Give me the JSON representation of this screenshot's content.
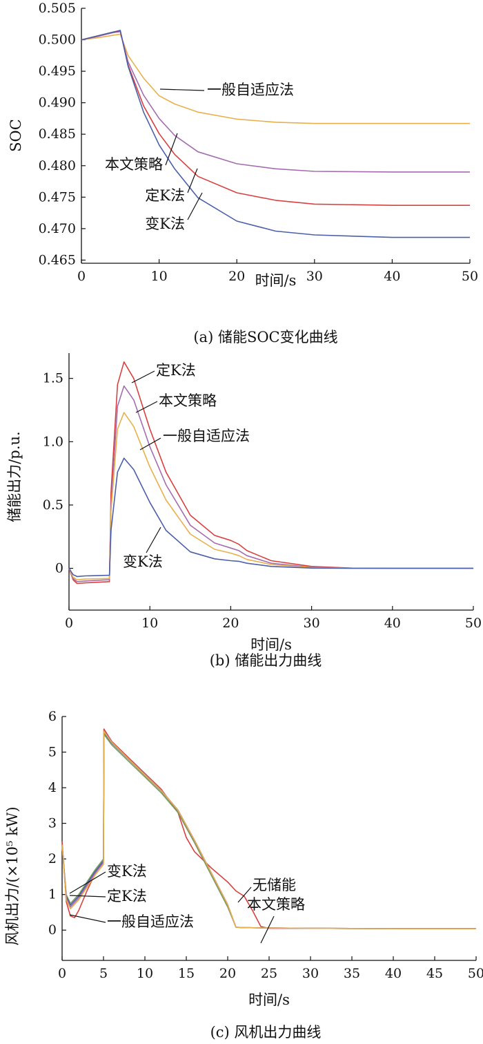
{
  "chart_data": [
    {
      "type": "line",
      "caption": "(a) 储能SOC变化曲线",
      "xlabel": "时间/s",
      "ylabel": "SOC",
      "xlim": [
        0,
        50
      ],
      "ylim": [
        0.4645,
        0.505
      ],
      "xticks": [
        0,
        10,
        20,
        30,
        40,
        50
      ],
      "yticks": [
        0.465,
        0.47,
        0.475,
        0.48,
        0.485,
        0.49,
        0.495,
        0.5,
        0.505
      ],
      "tick_decimals": 3,
      "grid": false,
      "series": [
        {
          "name": "一般自适应法",
          "color": "#e8b04a",
          "x": [
            0,
            2,
            4,
            5,
            6,
            8,
            10,
            12,
            15,
            20,
            25,
            30,
            40,
            50
          ],
          "y": [
            0.5,
            0.5003,
            0.5007,
            0.5009,
            0.4975,
            0.4939,
            0.4911,
            0.4898,
            0.4885,
            0.4874,
            0.4869,
            0.4867,
            0.4867,
            0.4867
          ]
        },
        {
          "name": "本文策略",
          "color": "#a46cb0",
          "x": [
            0,
            2,
            4,
            5,
            6,
            8,
            10,
            12,
            15,
            20,
            25,
            30,
            40,
            50
          ],
          "y": [
            0.5,
            0.5005,
            0.5011,
            0.5013,
            0.4965,
            0.4912,
            0.4875,
            0.4848,
            0.4822,
            0.4803,
            0.4795,
            0.4791,
            0.479,
            0.479
          ]
        },
        {
          "name": "定K法",
          "color": "#d94040",
          "x": [
            0,
            2,
            4,
            5,
            6,
            8,
            10,
            12,
            15,
            20,
            25,
            30,
            40,
            50
          ],
          "y": [
            0.5,
            0.5006,
            0.5012,
            0.5014,
            0.496,
            0.4895,
            0.4851,
            0.4818,
            0.4783,
            0.4757,
            0.4745,
            0.4739,
            0.4737,
            0.4737
          ]
        },
        {
          "name": "变K法",
          "color": "#4a5eaa",
          "x": [
            0,
            2,
            4,
            5,
            6,
            8,
            10,
            12,
            15,
            20,
            25,
            30,
            40,
            50
          ],
          "y": [
            0.5,
            0.5006,
            0.5012,
            0.5015,
            0.4958,
            0.4885,
            0.4833,
            0.4795,
            0.4749,
            0.4712,
            0.4696,
            0.469,
            0.4686,
            0.4686
          ]
        }
      ],
      "annotations": [
        {
          "text": "一般自适应法",
          "x": 10,
          "y": 0.4915
        },
        {
          "text": "本文策略",
          "x": 12,
          "y": 0.4852
        },
        {
          "text": "定K法",
          "x": 14.5,
          "y": 0.4793
        },
        {
          "text": "变K法",
          "x": 15.5,
          "y": 0.4742
        }
      ]
    },
    {
      "type": "line",
      "caption": "(b) 储能出力曲线",
      "xlabel": "时间/s",
      "ylabel": "储能出力/p.u.",
      "xlim": [
        0,
        50
      ],
      "ylim": [
        -0.33,
        1.7
      ],
      "xticks": [
        0,
        10,
        20,
        30,
        40,
        50
      ],
      "yticks": [
        0,
        0.5,
        1.0,
        1.5
      ],
      "tick_labels": [
        "0",
        "0.5",
        "1.0",
        "1.5"
      ],
      "grid": false,
      "series": [
        {
          "name": "定K法",
          "color": "#d94040",
          "x": [
            0,
            0.5,
            1,
            2,
            5,
            5.2,
            6,
            6.8,
            8,
            10,
            12,
            15,
            18,
            20,
            21,
            22,
            25,
            30,
            35,
            40,
            50
          ],
          "y": [
            0,
            -0.09,
            -0.12,
            -0.115,
            -0.105,
            0.6,
            1.45,
            1.63,
            1.5,
            1.1,
            0.76,
            0.42,
            0.26,
            0.22,
            0.19,
            0.14,
            0.06,
            0.015,
            0.002,
            0,
            0
          ]
        },
        {
          "name": "本文策略",
          "color": "#a46cb0",
          "x": [
            0,
            0.5,
            1,
            2,
            5,
            5.2,
            6,
            6.8,
            8,
            10,
            12,
            15,
            18,
            20,
            21,
            22,
            25,
            30,
            35,
            40,
            50
          ],
          "y": [
            0,
            -0.08,
            -0.105,
            -0.1,
            -0.09,
            0.5,
            1.28,
            1.44,
            1.33,
            0.96,
            0.66,
            0.34,
            0.2,
            0.16,
            0.14,
            0.1,
            0.04,
            0.008,
            0.001,
            0,
            0
          ]
        },
        {
          "name": "一般自适应法",
          "color": "#e8b04a",
          "x": [
            0,
            0.5,
            1,
            2,
            5,
            5.2,
            6,
            6.8,
            8,
            10,
            12,
            15,
            18,
            20,
            21,
            22,
            25,
            30,
            35,
            40,
            50
          ],
          "y": [
            0,
            -0.07,
            -0.09,
            -0.085,
            -0.08,
            0.45,
            1.1,
            1.23,
            1.12,
            0.8,
            0.54,
            0.27,
            0.15,
            0.12,
            0.1,
            0.07,
            0.03,
            0.005,
            0,
            0,
            0
          ]
        },
        {
          "name": "变K法",
          "color": "#4a5eaa",
          "x": [
            0,
            0.5,
            1,
            2,
            5,
            5.2,
            6,
            6.8,
            8,
            10,
            12,
            15,
            18,
            20,
            21,
            22,
            25,
            30,
            35,
            40,
            50
          ],
          "y": [
            0,
            -0.05,
            -0.065,
            -0.06,
            -0.055,
            0.3,
            0.76,
            0.87,
            0.78,
            0.52,
            0.3,
            0.13,
            0.075,
            0.06,
            0.055,
            0.04,
            0.015,
            0.002,
            0,
            0,
            0
          ]
        }
      ],
      "annotations": [
        {
          "text": "定K法",
          "x": 7.8,
          "y": 1.57
        },
        {
          "text": "本文策略",
          "x": 8.2,
          "y": 1.25
        },
        {
          "text": "一般自适应法",
          "x": 8.8,
          "y": 0.95
        },
        {
          "text": "变K法",
          "x": 11,
          "y": 0.33
        }
      ]
    },
    {
      "type": "line",
      "caption": "(c) 风机出力曲线",
      "xlabel": "时间/s",
      "ylabel": "风机出力/(×10⁵ kW)",
      "xlim": [
        0,
        50
      ],
      "ylim": [
        -0.85,
        6
      ],
      "xticks": [
        0,
        5,
        10,
        15,
        20,
        25,
        30,
        35,
        40,
        45,
        50
      ],
      "yticks": [
        0,
        1,
        2,
        3,
        4,
        5,
        6
      ],
      "grid": false,
      "series": [
        {
          "name": "无储能",
          "color": "#d94040",
          "x": [
            0,
            0.5,
            1,
            1.5,
            2,
            3,
            4,
            5,
            5.05,
            6,
            8,
            10,
            12,
            14,
            15,
            16,
            18,
            20,
            21,
            22,
            23,
            24,
            25,
            30,
            40,
            50
          ],
          "y": [
            2.5,
            0.8,
            0.4,
            0.35,
            0.55,
            1.1,
            1.6,
            1.95,
            5.65,
            5.3,
            4.85,
            4.4,
            3.95,
            3.3,
            2.6,
            2.2,
            1.75,
            1.35,
            1.1,
            0.95,
            0.55,
            0.1,
            0.05,
            0.05,
            0.04,
            0.04
          ]
        },
        {
          "name": "本文策略",
          "color": "#7a9e5a",
          "x": [
            0,
            0.5,
            1,
            2,
            3,
            4,
            5,
            5.05,
            6,
            8,
            10,
            12,
            14,
            16,
            18,
            20,
            21,
            22,
            25,
            30,
            40,
            50
          ],
          "y": [
            2.4,
            1.0,
            0.75,
            1.0,
            1.35,
            1.7,
            2.0,
            5.5,
            5.2,
            4.75,
            4.3,
            3.85,
            3.3,
            2.45,
            1.55,
            0.65,
            0.08,
            0.07,
            0.06,
            0.05,
            0.04,
            0.04
          ]
        },
        {
          "name": "变K法",
          "color": "#4a5eaa",
          "x": [
            0,
            0.5,
            1,
            2,
            3,
            4,
            5,
            5.05,
            6,
            8,
            10,
            12,
            14,
            16,
            18,
            20,
            21,
            22,
            25,
            30,
            40,
            50
          ],
          "y": [
            2.4,
            0.95,
            0.7,
            0.95,
            1.3,
            1.65,
            1.95,
            5.55,
            5.25,
            4.8,
            4.35,
            3.9,
            3.35,
            2.5,
            1.6,
            0.7,
            0.08,
            0.07,
            0.06,
            0.05,
            0.04,
            0.04
          ]
        },
        {
          "name": "定K法",
          "color": "#a46cb0",
          "x": [
            0,
            0.5,
            1,
            2,
            3,
            4,
            5,
            5.05,
            6,
            8,
            10,
            12,
            14,
            16,
            18,
            20,
            21,
            22,
            25,
            30,
            40,
            50
          ],
          "y": [
            2.4,
            0.9,
            0.65,
            0.9,
            1.25,
            1.6,
            1.9,
            5.6,
            5.28,
            4.82,
            4.37,
            3.92,
            3.37,
            2.52,
            1.62,
            0.72,
            0.08,
            0.07,
            0.06,
            0.05,
            0.04,
            0.04
          ]
        },
        {
          "name": "一般自适应法",
          "color": "#e8b04a",
          "x": [
            0,
            0.5,
            1,
            2,
            3,
            4,
            5,
            5.05,
            6,
            8,
            10,
            12,
            14,
            16,
            18,
            20,
            21,
            22,
            25,
            30,
            40,
            50
          ],
          "y": [
            2.4,
            0.85,
            0.6,
            0.85,
            1.2,
            1.55,
            1.85,
            5.58,
            5.27,
            4.81,
            4.36,
            3.91,
            3.36,
            2.51,
            1.61,
            0.71,
            0.08,
            0.07,
            0.06,
            0.05,
            0.04,
            0.04
          ]
        }
      ],
      "annotations": [
        {
          "text": "变K法",
          "x": 1.1,
          "y": 0.7
        },
        {
          "text": "定K法",
          "x": 1.1,
          "y": 0.62
        },
        {
          "text": "一般自适应法",
          "x": 1.3,
          "y": 0.5
        },
        {
          "text": "无储能",
          "x": 22.3,
          "y": 0.85
        },
        {
          "text": "本文策略",
          "x": 24.5,
          "y": 0.05
        }
      ]
    }
  ]
}
